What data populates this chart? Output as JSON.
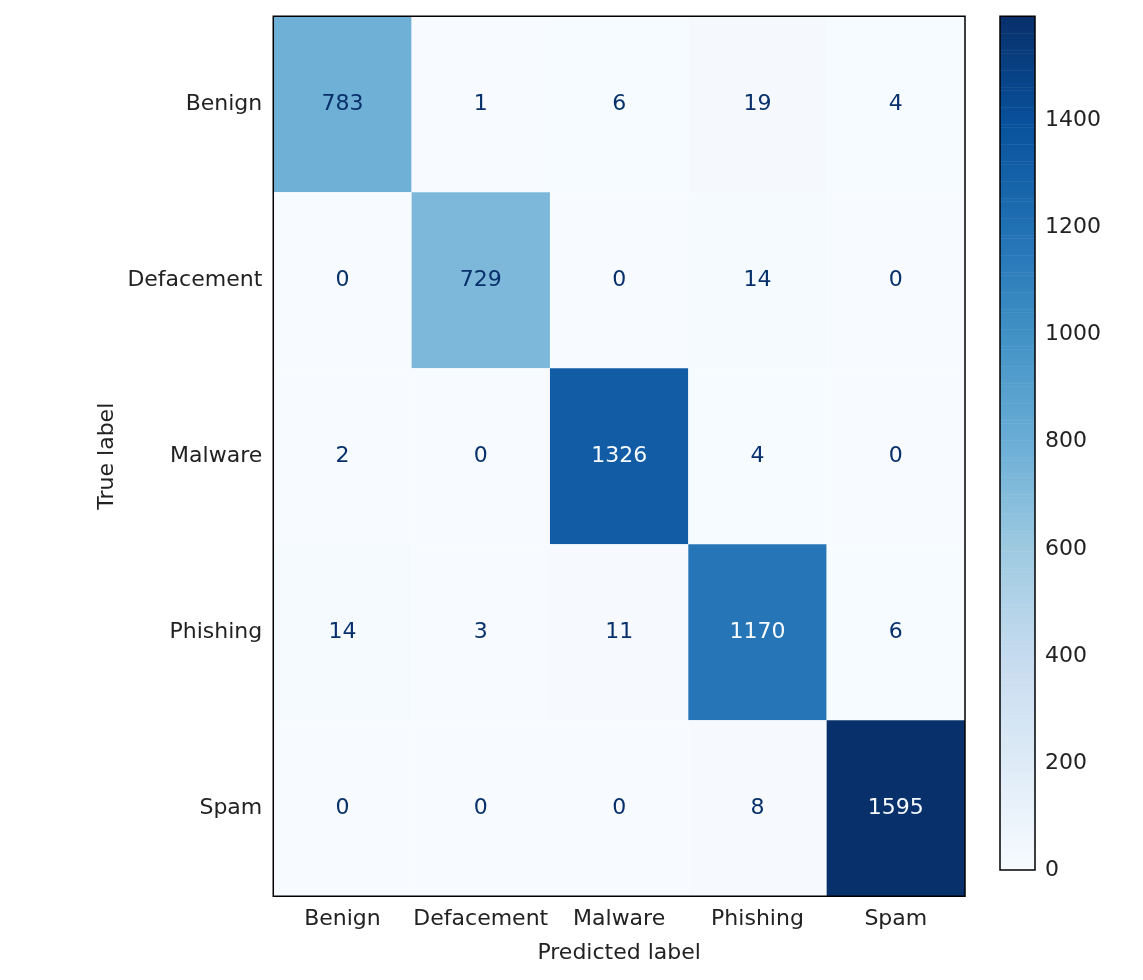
{
  "chart_data": {
    "type": "heatmap",
    "xlabel": "Predicted label",
    "ylabel": "True label",
    "categories": [
      "Benign",
      "Defacement",
      "Malware",
      "Phishing",
      "Spam"
    ],
    "y_categories": [
      "Benign",
      "Defacement",
      "Malware",
      "Phishing",
      "Spam"
    ],
    "cells": [
      [
        783,
        1,
        6,
        19,
        4
      ],
      [
        0,
        729,
        0,
        14,
        0
      ],
      [
        2,
        0,
        1326,
        4,
        0
      ],
      [
        14,
        3,
        11,
        1170,
        6
      ],
      [
        0,
        0,
        0,
        8,
        1595
      ]
    ],
    "clim": [
      0,
      1595
    ],
    "cticks": [
      0,
      200,
      400,
      600,
      800,
      1000,
      1200,
      1400
    ],
    "data_labels": true
  }
}
